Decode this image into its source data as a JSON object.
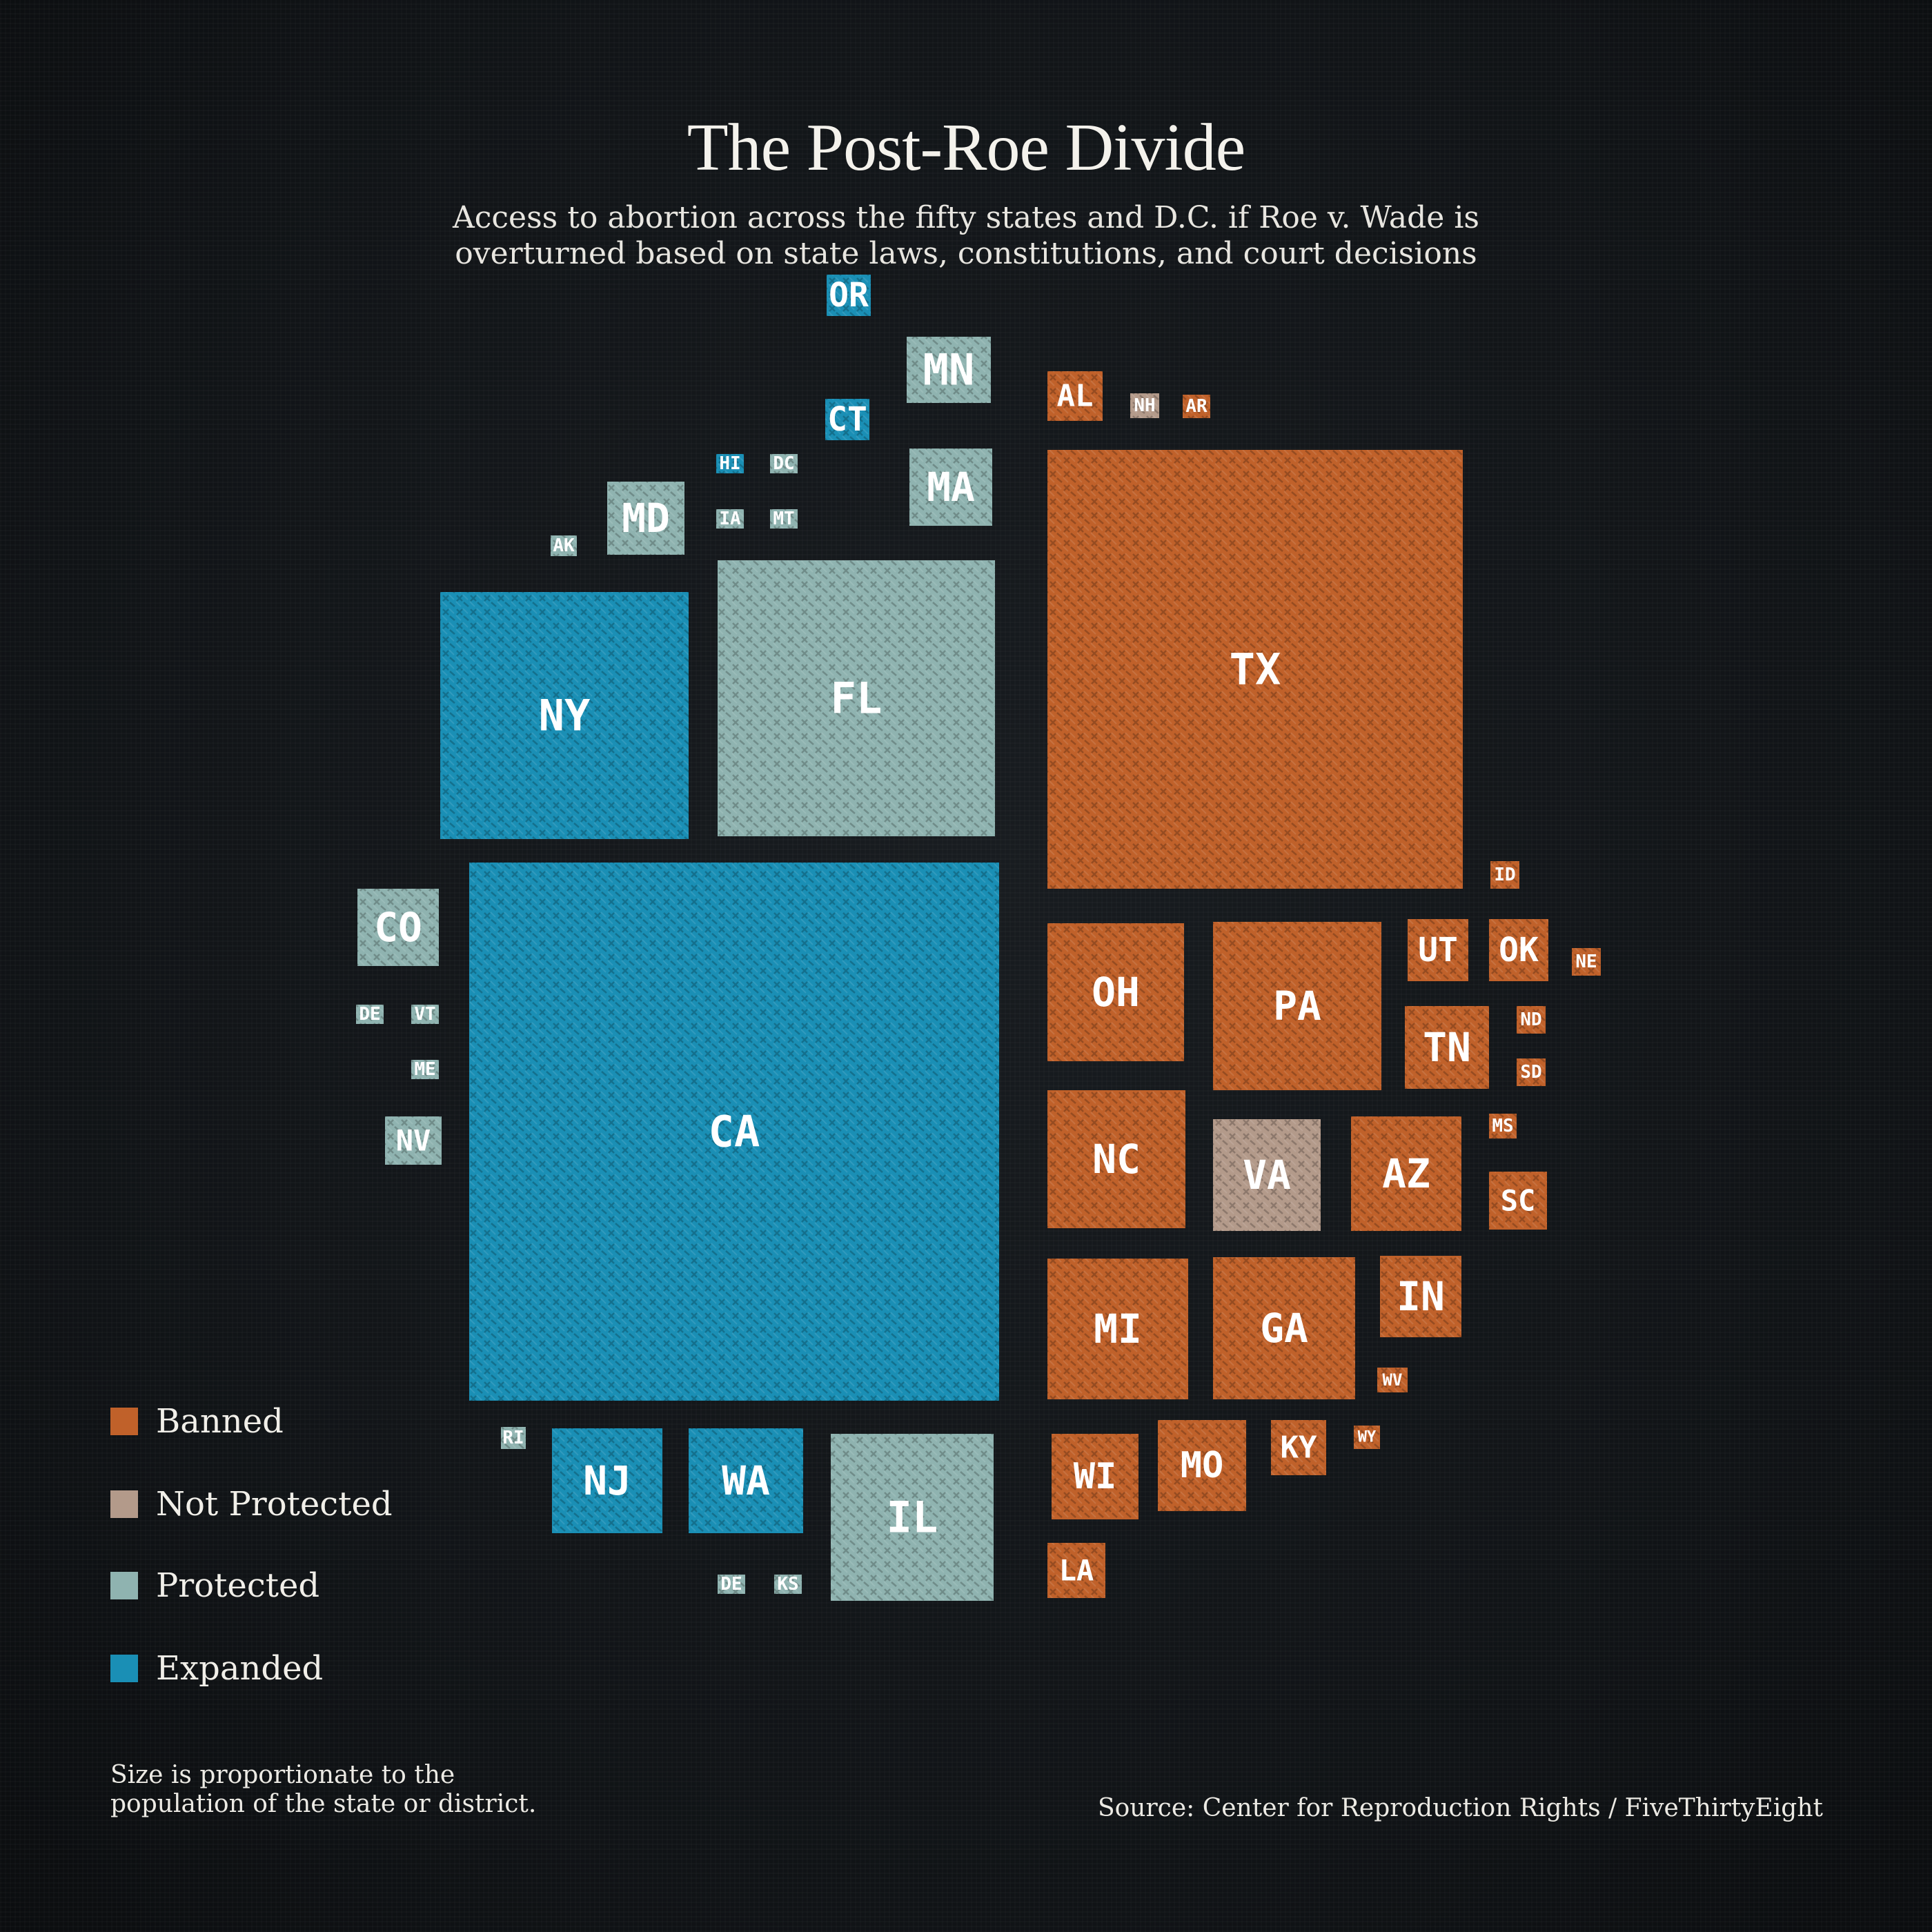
{
  "header": {
    "title": "The Post-Roe Divide",
    "subtitle_line1": "Access to abortion across the fifty states and D.C. if Roe v. Wade is",
    "subtitle_line2": "overturned based on state laws, constitutions, and court decisions"
  },
  "legend": {
    "items": [
      {
        "label": "Banned",
        "color": "#c0612a"
      },
      {
        "label": "Not Protected",
        "color": "#b39a8a"
      },
      {
        "label": "Protected",
        "color": "#8fb3b0"
      },
      {
        "label": "Expanded",
        "color": "#1a8fb5"
      }
    ]
  },
  "footer": {
    "note": "Size is proportionate to the population of the state or district.",
    "source": "Source: Center for Reproduction Rights / FiveThirtyEight"
  },
  "chart_data": {
    "type": "treemap",
    "title": "The Post-Roe Divide",
    "subtitle": "Access to abortion across the fifty states and D.C. if Roe v. Wade is overturned based on state laws, constitutions, and court decisions",
    "size_encoding": "Size is proportionate to the population of the state or district.",
    "categories": [
      "Banned",
      "Not Protected",
      "Protected",
      "Expanded"
    ],
    "colors": {
      "Banned": "#c0612a",
      "Not Protected": "#b39a8a",
      "Protected": "#8fb3b0",
      "Expanded": "#1a8fb5"
    },
    "states": [
      {
        "label": "CA",
        "status": "Expanded"
      },
      {
        "label": "NY",
        "status": "Expanded"
      },
      {
        "label": "NJ",
        "status": "Expanded"
      },
      {
        "label": "WA",
        "status": "Expanded"
      },
      {
        "label": "OR",
        "status": "Expanded"
      },
      {
        "label": "CT",
        "status": "Expanded"
      },
      {
        "label": "HI",
        "status": "Expanded"
      },
      {
        "label": "FL",
        "status": "Protected"
      },
      {
        "label": "IL",
        "status": "Protected"
      },
      {
        "label": "MN",
        "status": "Protected"
      },
      {
        "label": "MA",
        "status": "Protected"
      },
      {
        "label": "MD",
        "status": "Protected"
      },
      {
        "label": "CO",
        "status": "Protected"
      },
      {
        "label": "NV",
        "status": "Protected"
      },
      {
        "label": "AK",
        "status": "Protected"
      },
      {
        "label": "DC",
        "status": "Protected"
      },
      {
        "label": "IA",
        "status": "Protected"
      },
      {
        "label": "MT",
        "status": "Protected"
      },
      {
        "label": "DE",
        "status": "Protected"
      },
      {
        "label": "VT",
        "status": "Protected"
      },
      {
        "label": "ME",
        "status": "Protected"
      },
      {
        "label": "RI",
        "status": "Protected"
      },
      {
        "label": "DE",
        "status": "Protected"
      },
      {
        "label": "KS",
        "status": "Protected"
      },
      {
        "label": "VA",
        "status": "Not Protected"
      },
      {
        "label": "NH",
        "status": "Not Protected"
      },
      {
        "label": "TX",
        "status": "Banned"
      },
      {
        "label": "OH",
        "status": "Banned"
      },
      {
        "label": "PA",
        "status": "Banned"
      },
      {
        "label": "NC",
        "status": "Banned"
      },
      {
        "label": "AZ",
        "status": "Banned"
      },
      {
        "label": "MI",
        "status": "Banned"
      },
      {
        "label": "GA",
        "status": "Banned"
      },
      {
        "label": "IN",
        "status": "Banned"
      },
      {
        "label": "TN",
        "status": "Banned"
      },
      {
        "label": "UT",
        "status": "Banned"
      },
      {
        "label": "OK",
        "status": "Banned"
      },
      {
        "label": "SC",
        "status": "Banned"
      },
      {
        "label": "WI",
        "status": "Banned"
      },
      {
        "label": "MO",
        "status": "Banned"
      },
      {
        "label": "KY",
        "status": "Banned"
      },
      {
        "label": "LA",
        "status": "Banned"
      },
      {
        "label": "AL",
        "status": "Banned"
      },
      {
        "label": "AR",
        "status": "Banned"
      },
      {
        "label": "ID",
        "status": "Banned"
      },
      {
        "label": "NE",
        "status": "Banned"
      },
      {
        "label": "ND",
        "status": "Banned"
      },
      {
        "label": "SD",
        "status": "Banned"
      },
      {
        "label": "MS",
        "status": "Banned"
      },
      {
        "label": "WV",
        "status": "Banned"
      },
      {
        "label": "WY",
        "status": "Banned"
      }
    ]
  }
}
